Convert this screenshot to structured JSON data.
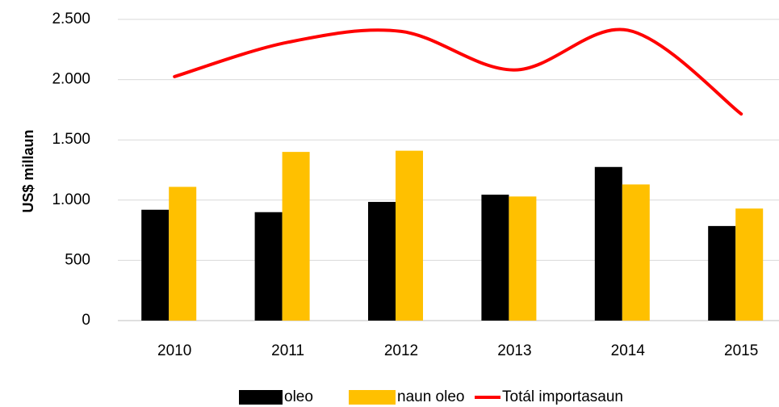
{
  "chart_data": {
    "type": "bar",
    "y_label": "US$ millaun",
    "categories": [
      "2010",
      "2011",
      "2012",
      "2013",
      "2014",
      "2015"
    ],
    "series": [
      {
        "name": "oleo",
        "type": "bar",
        "color": "#000000",
        "values": [
          920,
          900,
          985,
          1045,
          1275,
          785
        ]
      },
      {
        "name": "naun oleo",
        "type": "bar",
        "color": "#ffc000",
        "values": [
          1110,
          1400,
          1410,
          1030,
          1130,
          930
        ]
      },
      {
        "name": "Totál importasaun",
        "type": "line",
        "color": "#ff0000",
        "values": [
          2025,
          2310,
          2400,
          2080,
          2410,
          1715
        ]
      }
    ],
    "ylim": [
      0,
      2500
    ],
    "yticks": [
      0,
      500,
      {
        "value": 1000,
        "label": "1.000"
      },
      {
        "value": 1500,
        "label": "1.500"
      },
      {
        "value": 2000,
        "label": "2.000"
      },
      {
        "value": 2500,
        "label": "2.500"
      }
    ],
    "grid": true,
    "legend": "bottom"
  }
}
